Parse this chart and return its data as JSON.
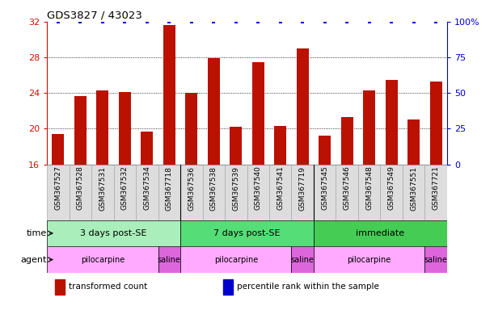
{
  "title": "GDS3827 / 43023",
  "samples": [
    "GSM367527",
    "GSM367528",
    "GSM367531",
    "GSM367532",
    "GSM367534",
    "GSM367718",
    "GSM367536",
    "GSM367538",
    "GSM367539",
    "GSM367540",
    "GSM367541",
    "GSM367719",
    "GSM367545",
    "GSM367546",
    "GSM367548",
    "GSM367549",
    "GSM367551",
    "GSM367721"
  ],
  "bar_values": [
    19.4,
    23.7,
    24.3,
    24.1,
    19.7,
    31.6,
    24.0,
    27.9,
    20.2,
    27.5,
    20.3,
    29.0,
    19.2,
    21.3,
    24.3,
    25.5,
    21.0,
    25.3
  ],
  "ylim": [
    16,
    32
  ],
  "yticks": [
    16,
    20,
    24,
    28,
    32
  ],
  "y2lim": [
    0,
    100
  ],
  "y2ticks": [
    0,
    25,
    50,
    75,
    100
  ],
  "y2ticklabels": [
    "0",
    "25",
    "50",
    "75",
    "100%"
  ],
  "bar_color": "#bb1100",
  "dot_color": "#0000cc",
  "left_axis_color": "#cc1100",
  "right_axis_color": "#0000cc",
  "gridline_ticks": [
    20,
    24,
    28
  ],
  "time_groups": [
    {
      "label": "3 days post-SE",
      "start": 0,
      "end": 6,
      "color": "#aaeebb"
    },
    {
      "label": "7 days post-SE",
      "start": 6,
      "end": 12,
      "color": "#55dd77"
    },
    {
      "label": "immediate",
      "start": 12,
      "end": 18,
      "color": "#44cc55"
    }
  ],
  "agent_groups": [
    {
      "label": "pilocarpine",
      "start": 0,
      "end": 5,
      "color": "#ffaaff"
    },
    {
      "label": "saline",
      "start": 5,
      "end": 6,
      "color": "#dd66dd"
    },
    {
      "label": "pilocarpine",
      "start": 6,
      "end": 11,
      "color": "#ffaaff"
    },
    {
      "label": "saline",
      "start": 11,
      "end": 12,
      "color": "#dd66dd"
    },
    {
      "label": "pilocarpine",
      "start": 12,
      "end": 17,
      "color": "#ffaaff"
    },
    {
      "label": "saline",
      "start": 17,
      "end": 18,
      "color": "#dd66dd"
    }
  ],
  "legend_items": [
    {
      "label": "transformed count",
      "color": "#bb1100"
    },
    {
      "label": "percentile rank within the sample",
      "color": "#0000cc"
    }
  ],
  "bar_width": 0.55
}
